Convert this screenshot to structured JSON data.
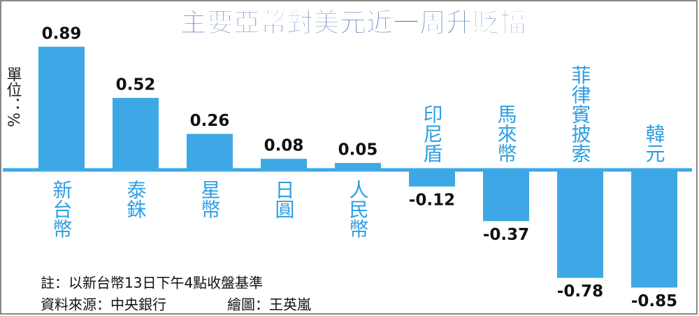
{
  "chart_data": {
    "type": "bar",
    "title": "主要亞幣對美元近一周升貶幅",
    "unit_label": "單位：%",
    "categories": [
      "新台幣",
      "泰銖",
      "星幣",
      "日圓",
      "人民幣",
      "印尼盾",
      "馬來幣",
      "菲律賓披索",
      "韓元"
    ],
    "values": [
      0.89,
      0.52,
      0.26,
      0.08,
      0.05,
      -0.12,
      -0.37,
      -0.78,
      -0.85
    ],
    "color": "#3ea8e6",
    "notes": [
      "註：以新台幣13日下午4點收盤基準",
      "資料來源：中央銀行",
      "繪圖：王英嵐"
    ]
  }
}
